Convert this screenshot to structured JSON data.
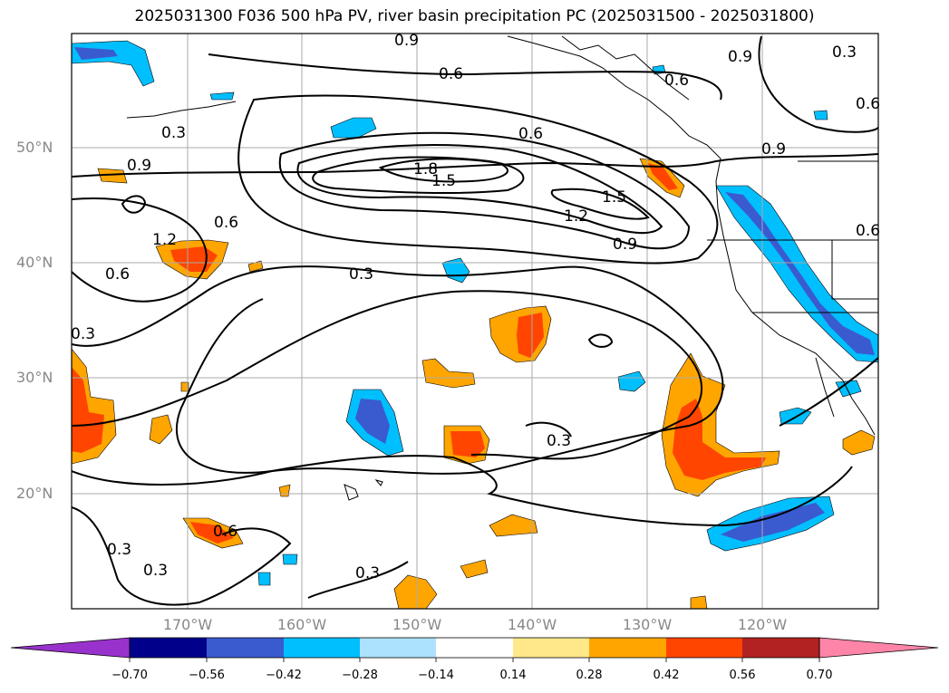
{
  "title": "2025031300 F036 500 hPa PV, river basin precipitation PC (2025031500 - 2025031800)",
  "lat_labels": [
    "50°N",
    "40°N",
    "30°N",
    "20°N"
  ],
  "lon_labels": [
    "170°W",
    "160°W",
    "150°W",
    "140°W",
    "130°W",
    "120°W"
  ],
  "contour_labels": [
    "0.9",
    "0.6",
    "0.9",
    "0.3",
    "0.6",
    "0.3",
    "0.6",
    "0.6",
    "0.9",
    "0.9",
    "1.8",
    "1.5",
    "1.5",
    "1.2",
    "0.9",
    "0.6",
    "1.2",
    "0.6",
    "0.6",
    "0.3",
    "0.3",
    "0.3",
    "0.6",
    "0.3",
    "0.3",
    "0.3"
  ],
  "colorbar": {
    "ticks": [
      "−0.70",
      "−0.56",
      "−0.42",
      "−0.28",
      "−0.14",
      "0.14",
      "0.28",
      "0.42",
      "0.56",
      "0.70"
    ],
    "colors": [
      "#9932CC",
      "#00008B",
      "#3A5BD0",
      "#00BFFF",
      "#ADE2FF",
      "#FFFFFF",
      "#FFE88A",
      "#FFA500",
      "#FF4500",
      "#B22222",
      "#FF85A8"
    ]
  },
  "colors": {
    "neg_light": "#00BFFF",
    "neg_mid": "#3A5BD0",
    "pos_light": "#FFA500",
    "pos_mid": "#FF4500",
    "pos_faint": "#FFE88A"
  }
}
